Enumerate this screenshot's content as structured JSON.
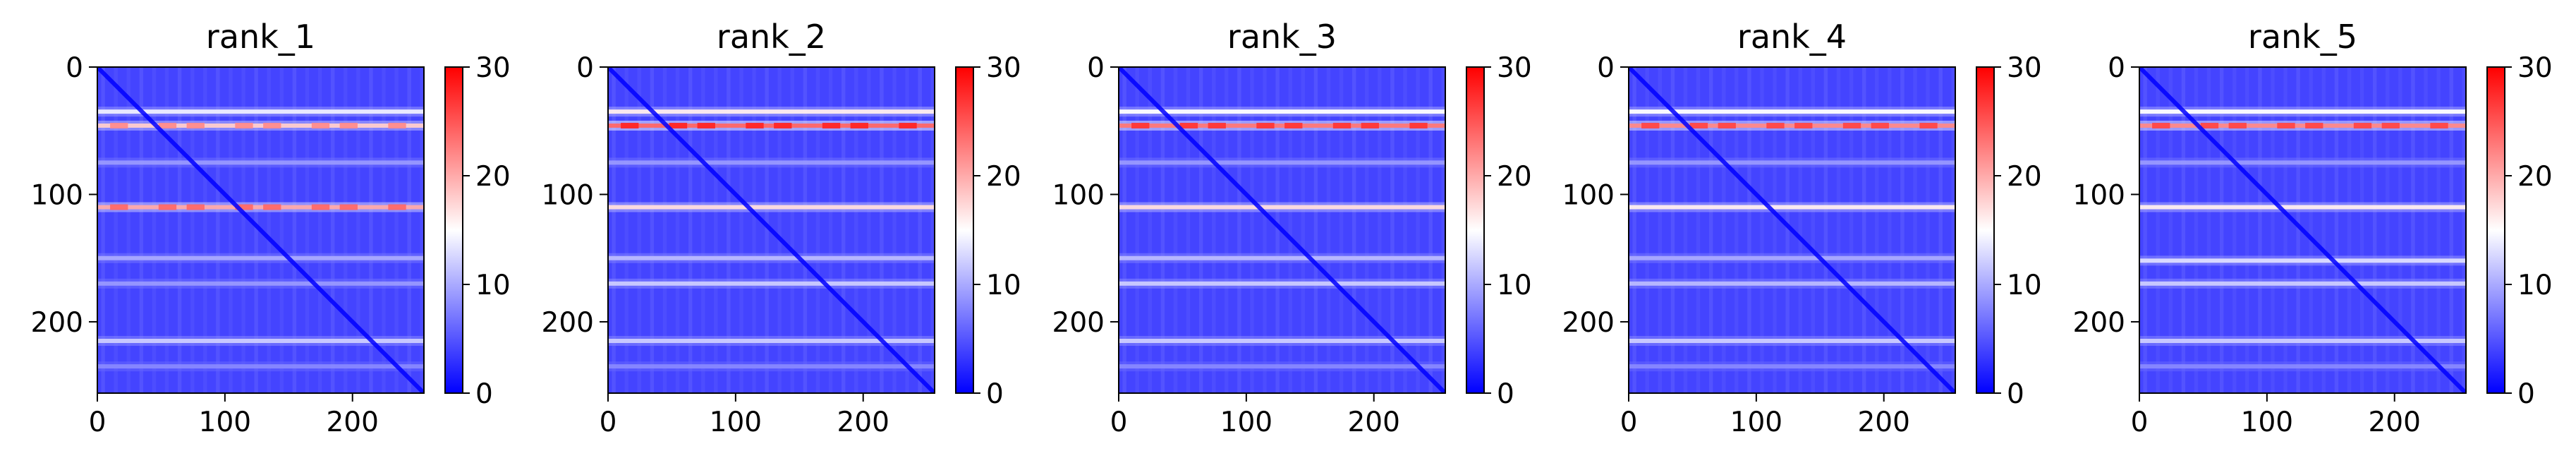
{
  "chart_data": [
    {
      "type": "heatmap",
      "title": "rank_1",
      "x_ticks": [
        0,
        100,
        200
      ],
      "y_ticks": [
        0,
        100,
        200
      ],
      "xlim": [
        0,
        256
      ],
      "ylim": [
        256,
        0
      ],
      "colorbar": {
        "colormap": "bwr",
        "range": [
          0,
          30
        ],
        "ticks": [
          0,
          10,
          20,
          30
        ]
      },
      "features": {
        "base_value": 4,
        "horizontal_bands": [
          {
            "y": 35,
            "value": 14
          },
          {
            "y": 46,
            "value": 18
          },
          {
            "y": 75,
            "value": 9
          },
          {
            "y": 110,
            "value": 20
          },
          {
            "y": 150,
            "value": 10
          },
          {
            "y": 170,
            "value": 9
          },
          {
            "y": 215,
            "value": 12
          },
          {
            "y": 235,
            "value": 8
          }
        ],
        "diagonal_value": 0
      }
    },
    {
      "type": "heatmap",
      "title": "rank_2",
      "x_ticks": [
        0,
        100,
        200
      ],
      "y_ticks": [
        0,
        100,
        200
      ],
      "xlim": [
        0,
        256
      ],
      "ylim": [
        256,
        0
      ],
      "colorbar": {
        "colormap": "bwr",
        "range": [
          0,
          30
        ],
        "ticks": [
          0,
          10,
          20,
          30
        ]
      },
      "features": {
        "base_value": 4,
        "horizontal_bands": [
          {
            "y": 35,
            "value": 16
          },
          {
            "y": 46,
            "value": 24
          },
          {
            "y": 75,
            "value": 9
          },
          {
            "y": 110,
            "value": 17
          },
          {
            "y": 150,
            "value": 11
          },
          {
            "y": 170,
            "value": 12
          },
          {
            "y": 215,
            "value": 12
          },
          {
            "y": 235,
            "value": 8
          }
        ],
        "diagonal_value": 0
      }
    },
    {
      "type": "heatmap",
      "title": "rank_3",
      "x_ticks": [
        0,
        100,
        200
      ],
      "y_ticks": [
        0,
        100,
        200
      ],
      "xlim": [
        0,
        256
      ],
      "ylim": [
        256,
        0
      ],
      "colorbar": {
        "colormap": "bwr",
        "range": [
          0,
          30
        ],
        "ticks": [
          0,
          10,
          20,
          30
        ]
      },
      "features": {
        "base_value": 4,
        "horizontal_bands": [
          {
            "y": 35,
            "value": 15
          },
          {
            "y": 46,
            "value": 23
          },
          {
            "y": 75,
            "value": 9
          },
          {
            "y": 110,
            "value": 17
          },
          {
            "y": 150,
            "value": 11
          },
          {
            "y": 170,
            "value": 12
          },
          {
            "y": 215,
            "value": 12
          },
          {
            "y": 235,
            "value": 8
          }
        ],
        "diagonal_value": 0
      }
    },
    {
      "type": "heatmap",
      "title": "rank_4",
      "x_ticks": [
        0,
        100,
        200
      ],
      "y_ticks": [
        0,
        100,
        200
      ],
      "xlim": [
        0,
        256
      ],
      "ylim": [
        256,
        0
      ],
      "colorbar": {
        "colormap": "bwr",
        "range": [
          0,
          30
        ],
        "ticks": [
          0,
          10,
          20,
          30
        ]
      },
      "features": {
        "base_value": 4,
        "horizontal_bands": [
          {
            "y": 35,
            "value": 15
          },
          {
            "y": 46,
            "value": 22
          },
          {
            "y": 75,
            "value": 9
          },
          {
            "y": 110,
            "value": 16
          },
          {
            "y": 150,
            "value": 10
          },
          {
            "y": 170,
            "value": 11
          },
          {
            "y": 215,
            "value": 12
          },
          {
            "y": 235,
            "value": 8
          }
        ],
        "diagonal_value": 0
      }
    },
    {
      "type": "heatmap",
      "title": "rank_5",
      "x_ticks": [
        0,
        100,
        200
      ],
      "y_ticks": [
        0,
        100,
        200
      ],
      "xlim": [
        0,
        256
      ],
      "ylim": [
        256,
        0
      ],
      "colorbar": {
        "colormap": "bwr",
        "range": [
          0,
          30
        ],
        "ticks": [
          0,
          10,
          20,
          30
        ]
      },
      "features": {
        "base_value": 4,
        "horizontal_bands": [
          {
            "y": 35,
            "value": 15
          },
          {
            "y": 46,
            "value": 22
          },
          {
            "y": 75,
            "value": 9
          },
          {
            "y": 110,
            "value": 16
          },
          {
            "y": 152,
            "value": 13
          },
          {
            "y": 170,
            "value": 12
          },
          {
            "y": 215,
            "value": 12
          },
          {
            "y": 235,
            "value": 8
          }
        ],
        "diagonal_value": 0
      }
    }
  ]
}
